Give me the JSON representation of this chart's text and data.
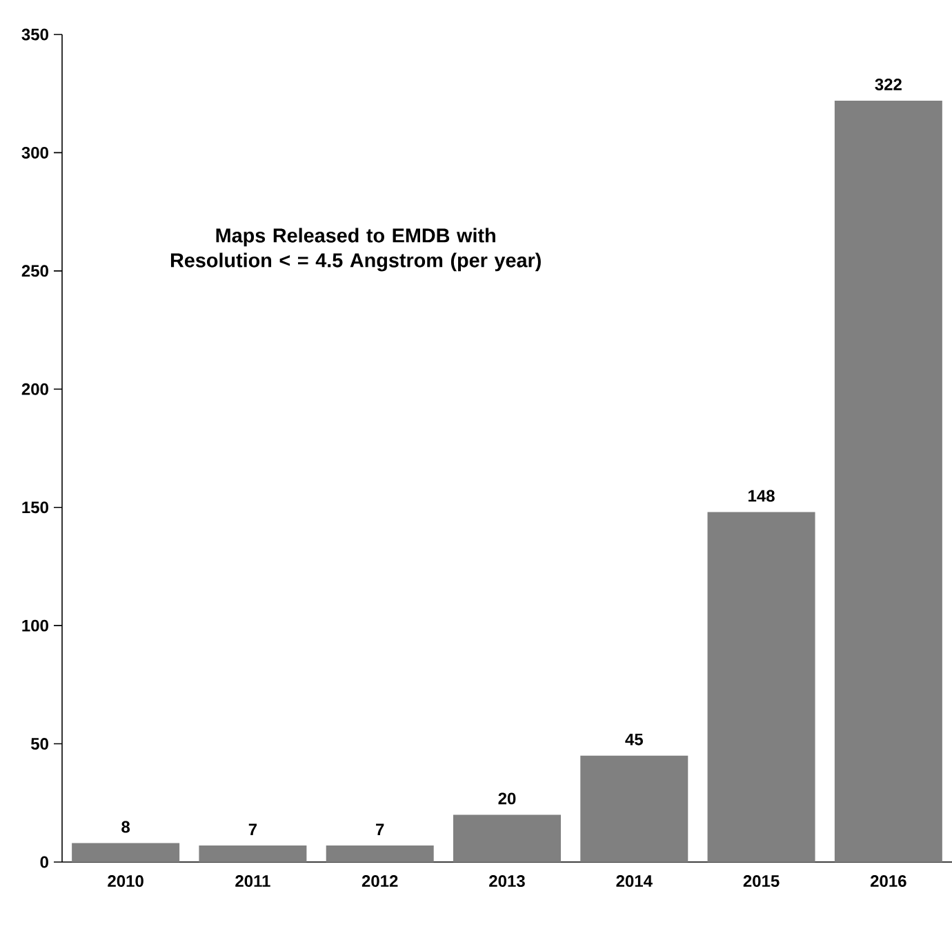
{
  "chart_data": {
    "type": "bar",
    "title": "Maps Released to EMDB with Resolution < = 4.5 Angstrom (per year)",
    "categories": [
      "2010",
      "2011",
      "2012",
      "2013",
      "2014",
      "2015",
      "2016"
    ],
    "values": [
      8,
      7,
      7,
      20,
      45,
      148,
      322
    ],
    "color": "#808080",
    "ylim": [
      0,
      350
    ],
    "yticks": [
      0,
      50,
      100,
      150,
      200,
      250,
      300,
      350
    ],
    "data_labels": true,
    "grid": false
  }
}
